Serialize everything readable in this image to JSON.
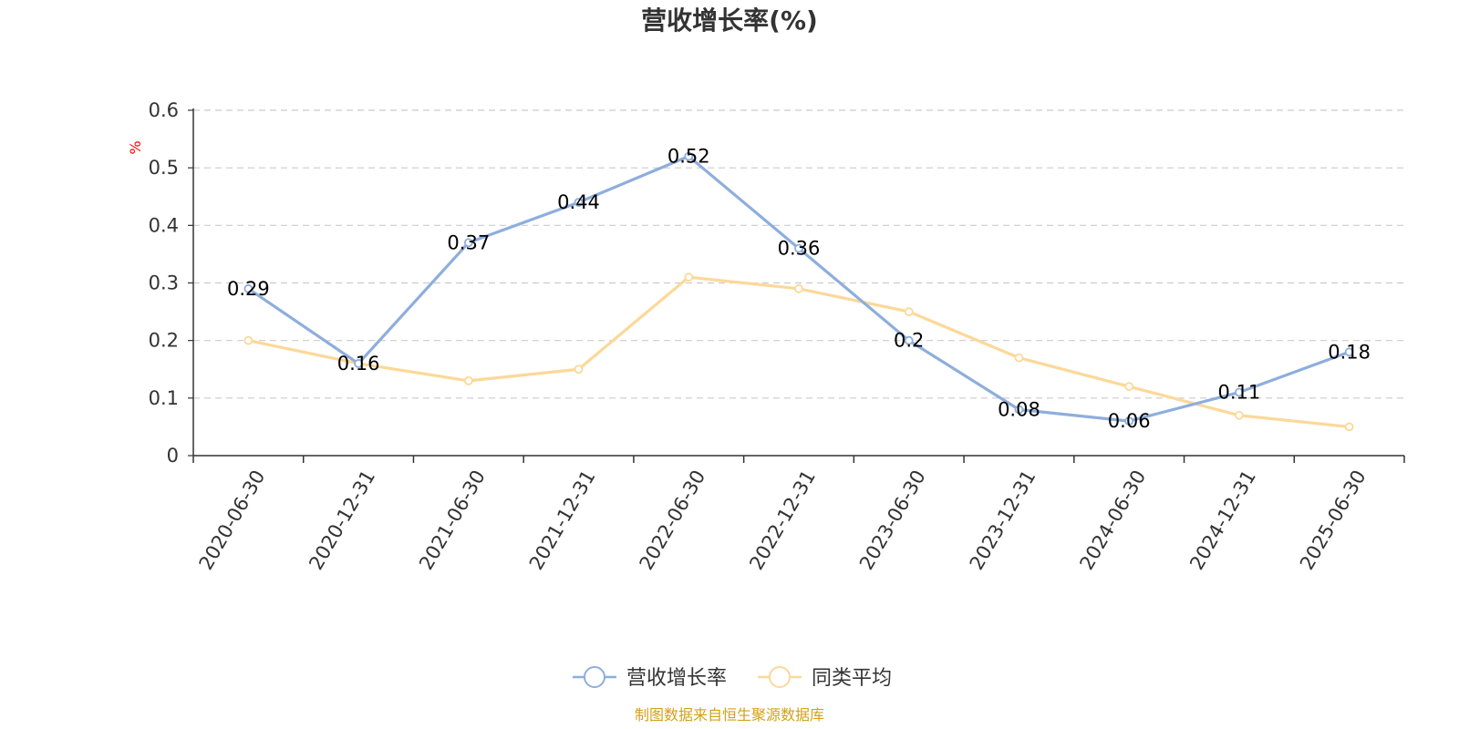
{
  "chart_data": {
    "type": "line",
    "title": "营收增长率(%)",
    "ylabel": "%",
    "xlabel": "",
    "ylim": [
      0,
      0.6
    ],
    "yticks": [
      "0",
      "0.1",
      "0.2",
      "0.3",
      "0.4",
      "0.5",
      "0.6"
    ],
    "grid": true,
    "legend_position": "bottom-center",
    "categories": [
      "2020-06-30",
      "2020-12-31",
      "2021-06-30",
      "2021-12-31",
      "2022-06-30",
      "2022-12-31",
      "2023-06-30",
      "2023-12-31",
      "2024-06-30",
      "2024-12-31",
      "2025-06-30"
    ],
    "series": [
      {
        "name": "营收增长率",
        "color": "#8eaedc",
        "values": [
          0.29,
          0.16,
          0.37,
          0.44,
          0.52,
          0.36,
          0.2,
          0.08,
          0.06,
          0.11,
          0.18
        ],
        "labels": [
          "0.29",
          "0.16",
          "0.37",
          "0.44",
          "0.52",
          "0.36",
          "0.2",
          "0.08",
          "0.06",
          "0.11",
          "0.18"
        ],
        "show_labels": true
      },
      {
        "name": "同类平均",
        "color": "#fcd898",
        "values": [
          0.2,
          0.16,
          0.13,
          0.15,
          0.31,
          0.29,
          0.25,
          0.17,
          0.12,
          0.07,
          0.05
        ],
        "show_labels": false
      }
    ]
  },
  "footer": {
    "source": "制图数据来自恒生聚源数据库"
  },
  "colors": {
    "y_unit": "#ff0000",
    "source": "#d4a017",
    "grid": "#cccccc",
    "axis": "#333333"
  }
}
